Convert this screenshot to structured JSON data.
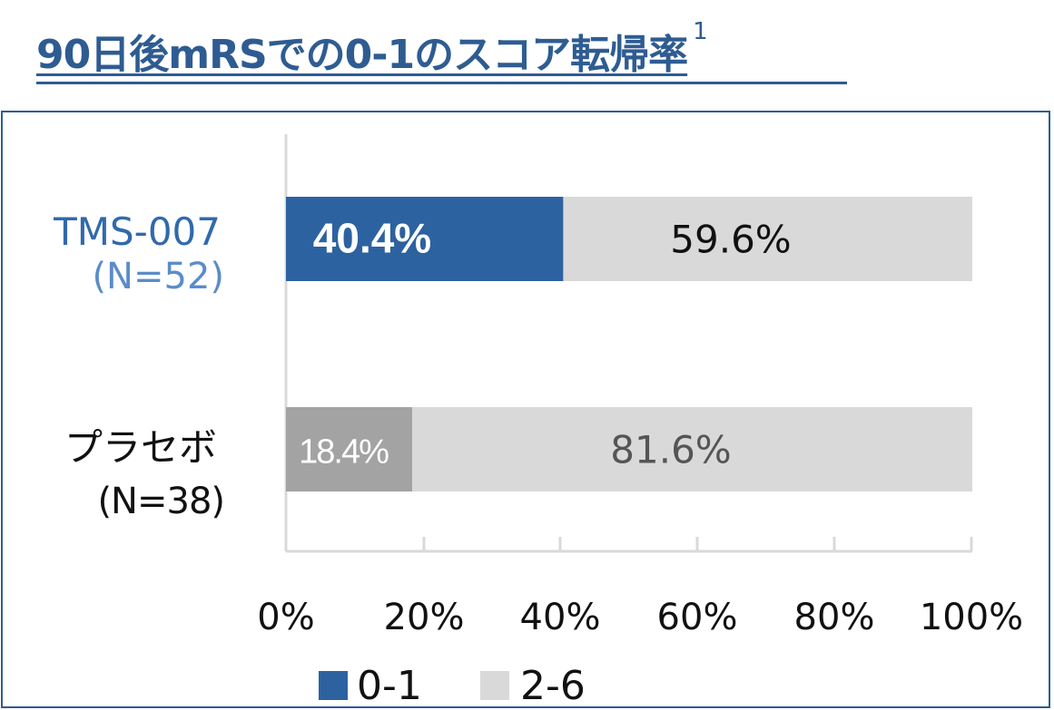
{
  "title": {
    "text": "90日後mRSでの0-1のスコア転帰率",
    "footnote": "1"
  },
  "chart_data": {
    "type": "bar",
    "orientation": "horizontal",
    "stacked": "percent",
    "title": "90日後mRSでの0-1のスコア転帰率",
    "categories": [
      {
        "name": "TMS-007",
        "n": "(N=52)"
      },
      {
        "name": "プラセボ",
        "n": "(N=38)"
      }
    ],
    "series": [
      {
        "name": "0-1",
        "values": [
          40.4,
          18.4
        ],
        "labels": [
          "40.4%",
          "18.4%"
        ]
      },
      {
        "name": "2-6",
        "values": [
          59.6,
          81.6
        ],
        "labels": [
          "59.6%",
          "81.6%"
        ]
      }
    ],
    "xlim": [
      0,
      100
    ],
    "xticks": [
      "0%",
      "20%",
      "40%",
      "60%",
      "80%",
      "100%"
    ],
    "grid": false,
    "legend_position": "bottom",
    "colors": {
      "tms_low": "#2d62a0",
      "placebo_low": "#a3a3a3",
      "high": "#d9d9d9",
      "axis": "#d9d9d9",
      "title": "#2e5c92",
      "tms_label": "#3169ad",
      "tms_n": "#5b8cc9",
      "dark_label": "#111111",
      "mid_label": "#555555"
    }
  }
}
